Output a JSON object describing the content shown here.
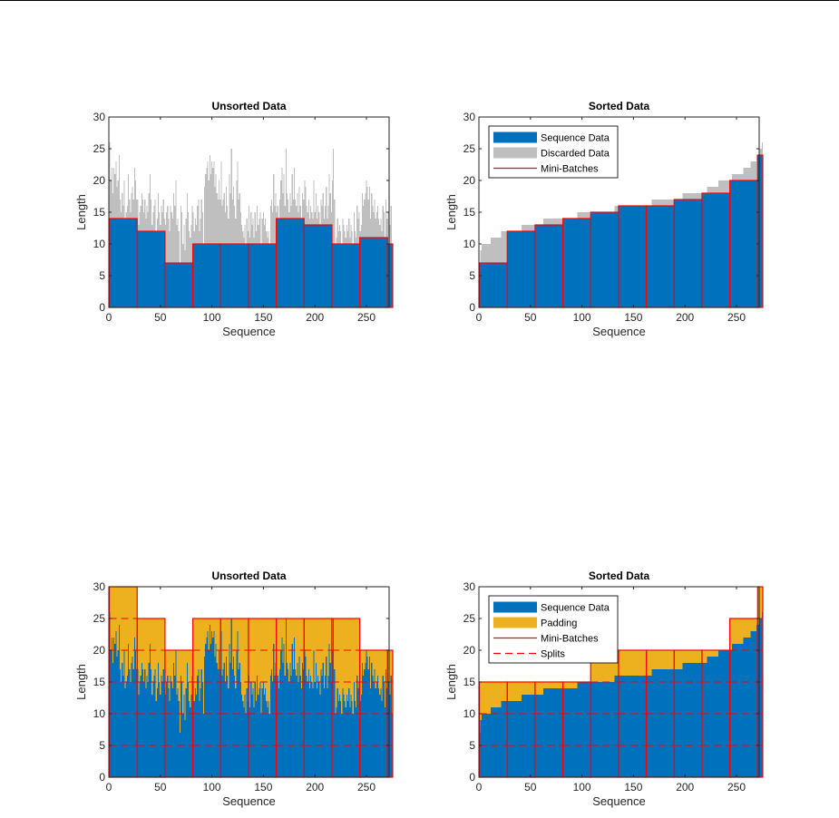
{
  "colors": {
    "sequence": "#0072BD",
    "discarded": "#BFBFBF",
    "padding": "#EDB120",
    "minibatch": "#FF0000",
    "split": "#FF0000",
    "axis": "#262626"
  },
  "sequence_lengths_unsorted": [
    26,
    20,
    22,
    18,
    22,
    21,
    23,
    19,
    20,
    24,
    17,
    15,
    18,
    16,
    20,
    14,
    15,
    16,
    21,
    17,
    15,
    18,
    19,
    17,
    22,
    20,
    17,
    17,
    13,
    15,
    16,
    18,
    17,
    15,
    17,
    14,
    16,
    15,
    18,
    21,
    17,
    13,
    15,
    16,
    17,
    12,
    14,
    18,
    15,
    13,
    16,
    15,
    17,
    14,
    13,
    15,
    16,
    14,
    12,
    16,
    15,
    14,
    18,
    16,
    20,
    13,
    14,
    12,
    7,
    16,
    15,
    10,
    13,
    9,
    14,
    18,
    15,
    12,
    11,
    13,
    16,
    15,
    12,
    14,
    13,
    16,
    17,
    12,
    14,
    17,
    15,
    10,
    19,
    21,
    22,
    23,
    20,
    24,
    21,
    23,
    22,
    23,
    19,
    21,
    18,
    17,
    20,
    17,
    23,
    16,
    17,
    18,
    15,
    19,
    16,
    14,
    21,
    18,
    25,
    17,
    19,
    16,
    14,
    20,
    23,
    17,
    18,
    15,
    13,
    12,
    11,
    13,
    10,
    14,
    12,
    16,
    11,
    15,
    13,
    14,
    11,
    15,
    12,
    16,
    13,
    14,
    15,
    10,
    14,
    15,
    13,
    14,
    12,
    11,
    12,
    10,
    16,
    17,
    15,
    21,
    16,
    18,
    15,
    16,
    14,
    17,
    20,
    22,
    18,
    21,
    16,
    25,
    18,
    17,
    15,
    18,
    16,
    21,
    17,
    22,
    17,
    16,
    18,
    15,
    19,
    16,
    14,
    18,
    17,
    20,
    19,
    16,
    15,
    17,
    14,
    16,
    15,
    14,
    20,
    15,
    18,
    14,
    16,
    15,
    13,
    17,
    16,
    18,
    14,
    16,
    19,
    14,
    16,
    21,
    18,
    15,
    20,
    25,
    17,
    10,
    11,
    14,
    12,
    13,
    12,
    10,
    14,
    13,
    12,
    11,
    13,
    12,
    14,
    11,
    13,
    12,
    10,
    15,
    12,
    11,
    16,
    14,
    15,
    12,
    13,
    18,
    16,
    17,
    18,
    20,
    19,
    17,
    19,
    14,
    18,
    16,
    15,
    17,
    14,
    15,
    16,
    14,
    13,
    14,
    12,
    16,
    15,
    11,
    17,
    14,
    15,
    12,
    13,
    16,
    10
  ],
  "charts": [
    {
      "id": "top-left",
      "title": "Unsorted Data",
      "xlabel": "Sequence",
      "ylabel": "Length",
      "type": "bar",
      "sorted": false,
      "mode": "truncate",
      "xlim": [
        0,
        272
      ],
      "ylim": [
        0,
        30
      ],
      "xticks": [
        0,
        50,
        100,
        150,
        200,
        250
      ],
      "yticks": [
        0,
        5,
        10,
        15,
        20,
        25,
        30
      ],
      "legend": null
    },
    {
      "id": "top-right",
      "title": "Sorted Data",
      "xlabel": "Sequence",
      "ylabel": "Length",
      "type": "bar",
      "sorted": true,
      "mode": "truncate",
      "xlim": [
        0,
        272
      ],
      "ylim": [
        0,
        30
      ],
      "xticks": [
        0,
        50,
        100,
        150,
        200,
        250
      ],
      "yticks": [
        0,
        5,
        10,
        15,
        20,
        25,
        30
      ],
      "legend": {
        "position": "top-left",
        "entries": [
          {
            "label": "Sequence Data",
            "kind": "patch",
            "color_key": "sequence"
          },
          {
            "label": "Discarded Data",
            "kind": "patch",
            "color_key": "discarded"
          },
          {
            "label": "Mini-Batches",
            "kind": "line",
            "color_key": "minibatch"
          }
        ]
      }
    },
    {
      "id": "bottom-left",
      "title": "Unsorted Data",
      "xlabel": "Sequence",
      "ylabel": "Length",
      "type": "bar",
      "sorted": false,
      "mode": "pad",
      "split_length": 5,
      "xlim": [
        0,
        272
      ],
      "ylim": [
        0,
        30
      ],
      "xticks": [
        0,
        50,
        100,
        150,
        200,
        250
      ],
      "yticks": [
        0,
        5,
        10,
        15,
        20,
        25,
        30
      ],
      "legend": null
    },
    {
      "id": "bottom-right",
      "title": "Sorted Data",
      "xlabel": "Sequence",
      "ylabel": "Length",
      "type": "bar",
      "sorted": true,
      "mode": "pad",
      "split_length": 5,
      "xlim": [
        0,
        272
      ],
      "ylim": [
        0,
        30
      ],
      "xticks": [
        0,
        50,
        100,
        150,
        200,
        250
      ],
      "yticks": [
        0,
        5,
        10,
        15,
        20,
        25,
        30
      ],
      "legend": {
        "position": "top-left",
        "entries": [
          {
            "label": "Sequence Data",
            "kind": "patch",
            "color_key": "sequence"
          },
          {
            "label": "Padding",
            "kind": "patch",
            "color_key": "padding"
          },
          {
            "label": "Mini-Batches",
            "kind": "line",
            "color_key": "minibatch"
          },
          {
            "label": "Splits",
            "kind": "dashed",
            "color_key": "split"
          }
        ]
      }
    }
  ],
  "chart_data": [
    {
      "type": "bar",
      "title": "Unsorted Data",
      "xlabel": "Sequence",
      "ylabel": "Length",
      "xlim": [
        0,
        272
      ],
      "ylim": [
        0,
        30
      ],
      "mini_batch_size": 27,
      "series": [
        {
          "name": "Sequence Data (truncated to batch min)",
          "batch_values": [
            13,
            11,
            7,
            10,
            10,
            10,
            12,
            10,
            10,
            9
          ]
        },
        {
          "name": "Discarded Data",
          "source": "sequence_lengths_unsorted"
        },
        {
          "name": "Mini-Batches",
          "batch_boundaries": [
            0.5,
            27.5,
            54.5,
            81.5,
            108.5,
            135.5,
            162.5,
            189.5,
            216.5,
            243.5,
            270.5
          ]
        }
      ]
    },
    {
      "type": "bar",
      "title": "Sorted Data",
      "xlabel": "Sequence",
      "ylabel": "Length",
      "xlim": [
        0,
        272
      ],
      "ylim": [
        0,
        30
      ],
      "mini_batch_size": 27,
      "series": [
        {
          "name": "Sequence Data",
          "batch_values": [
            7,
            11,
            13,
            14,
            15,
            15,
            16,
            17,
            19,
            21
          ]
        },
        {
          "name": "Discarded Data",
          "batch_max": [
            11,
            12,
            14,
            15,
            15,
            16,
            17,
            18,
            21,
            26
          ]
        },
        {
          "name": "Mini-Batches"
        }
      ],
      "legend": [
        "Sequence Data",
        "Discarded Data",
        "Mini-Batches"
      ],
      "legend_position": "top-left"
    },
    {
      "type": "bar",
      "title": "Unsorted Data",
      "xlabel": "Sequence",
      "ylabel": "Length",
      "xlim": [
        0,
        272
      ],
      "ylim": [
        0,
        30
      ],
      "mini_batch_size": 27,
      "series": [
        {
          "name": "Sequence Data",
          "source": "sequence_lengths_unsorted"
        },
        {
          "name": "Padding",
          "batch_values": [
            30,
            25,
            25,
            25,
            25,
            25,
            25,
            25,
            20,
            20
          ]
        },
        {
          "name": "Mini-Batches"
        },
        {
          "name": "Splits",
          "y_values": [
            5,
            10,
            15,
            20,
            25
          ]
        }
      ]
    },
    {
      "type": "bar",
      "title": "Sorted Data",
      "xlabel": "Sequence",
      "ylabel": "Length",
      "xlim": [
        0,
        272
      ],
      "ylim": [
        0,
        30
      ],
      "mini_batch_size": 27,
      "series": [
        {
          "name": "Sequence Data",
          "source": "sorted(sequence_lengths_unsorted)"
        },
        {
          "name": "Padding",
          "batch_values": [
            15,
            15,
            15,
            15,
            15,
            20,
            20,
            20,
            25,
            30
          ]
        },
        {
          "name": "Mini-Batches"
        },
        {
          "name": "Splits",
          "y_values": [
            5,
            10,
            15,
            20,
            25
          ]
        }
      ],
      "legend": [
        "Sequence Data",
        "Padding",
        "Mini-Batches",
        "Splits"
      ],
      "legend_position": "top-left"
    }
  ]
}
